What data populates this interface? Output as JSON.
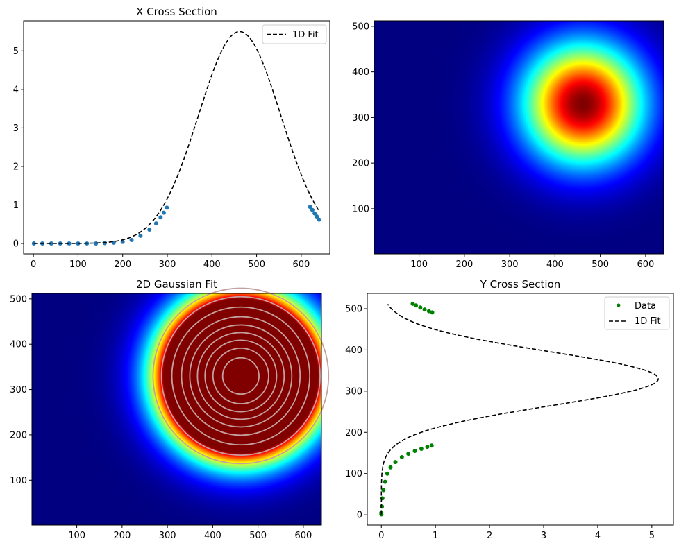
{
  "chart_data": [
    {
      "type": "line",
      "title": "X Cross Section",
      "xlabel": "",
      "ylabel": "",
      "xlim": [
        -22,
        664
      ],
      "ylim": [
        -0.27,
        5.78
      ],
      "xticks": [
        0,
        100,
        200,
        300,
        400,
        500,
        600
      ],
      "yticks": [
        0,
        1,
        2,
        3,
        4,
        5
      ],
      "legend": {
        "position": "top-right",
        "entries": [
          "1D Fit"
        ]
      },
      "fit": {
        "name": "1D Fit",
        "style": "dashed",
        "color": "#000000",
        "amplitude": 5.5,
        "center": 462,
        "sigma": 92,
        "x_range": [
          1,
          640
        ]
      },
      "series": [
        {
          "name": "",
          "color": "#1f77b4",
          "points": [
            [
              1,
              0
            ],
            [
              20,
              0
            ],
            [
              40,
              0
            ],
            [
              60,
              0
            ],
            [
              80,
              0
            ],
            [
              100,
              0
            ],
            [
              120,
              0
            ],
            [
              140,
              0
            ],
            [
              160,
              0.01
            ],
            [
              180,
              0.02
            ],
            [
              200,
              0.04
            ],
            [
              220,
              0.09
            ],
            [
              240,
              0.2
            ],
            [
              260,
              0.36
            ],
            [
              275,
              0.52
            ],
            [
              285,
              0.68
            ],
            [
              292,
              0.8
            ],
            [
              299,
              0.93
            ],
            [
              620,
              0.95
            ],
            [
              625,
              0.87
            ],
            [
              630,
              0.78
            ],
            [
              635,
              0.7
            ],
            [
              640,
              0.62
            ]
          ]
        }
      ]
    },
    {
      "type": "heatmap",
      "title": "",
      "colormap": "jet",
      "xlim": [
        1,
        640
      ],
      "ylim": [
        1,
        512
      ],
      "xticks": [
        100,
        200,
        300,
        400,
        500,
        600
      ],
      "yticks": [
        100,
        200,
        300,
        400,
        500
      ],
      "peak": {
        "x": 462,
        "y": 330,
        "value": 5.5
      },
      "sigma": 92
    },
    {
      "type": "heatmap",
      "title": "2D Gaussian Fit",
      "colormap": "jet",
      "xlim": [
        1,
        640
      ],
      "ylim": [
        1,
        512
      ],
      "xticks": [
        100,
        200,
        300,
        400,
        500,
        600
      ],
      "yticks": [
        100,
        200,
        300,
        400,
        500
      ],
      "peak": {
        "x": 462,
        "y": 330,
        "value": 5.5
      },
      "sigma": 92,
      "color_max": 1.0,
      "contour_levels": [
        0.6,
        0.9,
        1.4,
        2.0,
        2.6,
        3.2,
        3.8,
        4.4,
        5.0
      ],
      "contour_color": "#c4a0a0"
    },
    {
      "type": "line",
      "title": "Y Cross Section",
      "xlabel": "",
      "ylabel": "",
      "xlim": [
        -0.26,
        5.4
      ],
      "ylim": [
        -25,
        537
      ],
      "xticks": [
        0,
        1,
        2,
        3,
        4,
        5
      ],
      "yticks": [
        0,
        100,
        200,
        300,
        400,
        500
      ],
      "legend": {
        "position": "top-right",
        "entries": [
          "Data",
          "1D Fit"
        ]
      },
      "fit": {
        "name": "1D Fit",
        "style": "dashed",
        "color": "#000000",
        "amplitude": 5.12,
        "center": 330,
        "sigma": 66,
        "y_range": [
          1,
          512
        ]
      },
      "series": [
        {
          "name": "Data",
          "color": "#008000",
          "points": [
            [
              0,
              1
            ],
            [
              0,
              5
            ],
            [
              0.01,
              20
            ],
            [
              0.02,
              40
            ],
            [
              0.04,
              60
            ],
            [
              0.07,
              80
            ],
            [
              0.11,
              100
            ],
            [
              0.17,
              115
            ],
            [
              0.26,
              128
            ],
            [
              0.38,
              140
            ],
            [
              0.5,
              148
            ],
            [
              0.62,
              155
            ],
            [
              0.74,
              160
            ],
            [
              0.85,
              165
            ],
            [
              0.93,
              168
            ],
            [
              0.58,
              512
            ],
            [
              0.64,
              508
            ],
            [
              0.72,
              503
            ],
            [
              0.8,
              498
            ],
            [
              0.88,
              494
            ],
            [
              0.94,
              491
            ]
          ]
        }
      ]
    }
  ]
}
